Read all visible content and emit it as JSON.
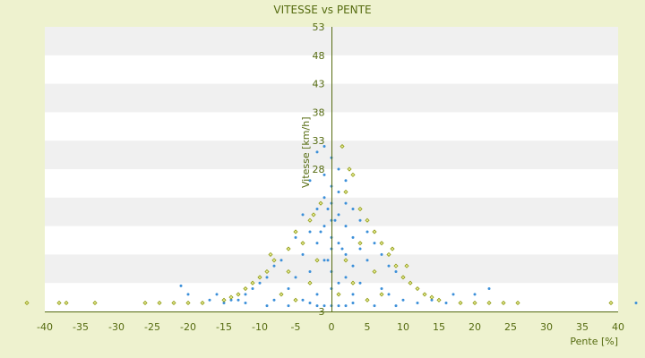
{
  "chart_data": {
    "type": "scatter",
    "title": "VITESSE vs PENTE",
    "xlabel": "Pente [%]",
    "ylabel": "Vitesse [km/h]",
    "xlim": [
      -40,
      40
    ],
    "ylim": [
      3,
      53
    ],
    "x_ticks": [
      -40,
      -35,
      -30,
      -25,
      -20,
      -15,
      -10,
      -5,
      0,
      5,
      10,
      15,
      20,
      25,
      30,
      35,
      40
    ],
    "y_ticks": [
      3,
      8,
      13,
      18,
      23,
      28,
      33,
      38,
      43,
      48,
      53
    ],
    "y_tick_labels_visible": [
      "3",
      "28",
      "33",
      "38",
      "43",
      "48",
      "53"
    ],
    "grid": "horizontal-bands",
    "colors": {
      "series_blue": "#3b8fd9",
      "series_olive": "#8f9a12",
      "band": "#f0f0f0",
      "plot_bg": "#ffffff",
      "axis": "#556b10",
      "page_bg": "#eef2cf"
    },
    "series": [
      {
        "name": "",
        "color": "#3b8fd9",
        "marker": "small-dot",
        "points": [
          [
            -1,
            32
          ],
          [
            0,
            30
          ],
          [
            -2,
            31
          ],
          [
            1,
            28
          ],
          [
            -1,
            27
          ],
          [
            2,
            26
          ],
          [
            0,
            25
          ],
          [
            -3,
            26
          ],
          [
            1,
            24
          ],
          [
            -1,
            23
          ],
          [
            0,
            22
          ],
          [
            2,
            22
          ],
          [
            -2,
            21
          ],
          [
            3,
            21
          ],
          [
            1,
            20
          ],
          [
            -4,
            20
          ],
          [
            0,
            19
          ],
          [
            4,
            19
          ],
          [
            -1,
            18
          ],
          [
            2,
            18
          ],
          [
            -3,
            17
          ],
          [
            5,
            17
          ],
          [
            0,
            16
          ],
          [
            -5,
            16
          ],
          [
            3,
            16
          ],
          [
            1,
            15
          ],
          [
            -2,
            15
          ],
          [
            6,
            15
          ],
          [
            0,
            14
          ],
          [
            -6,
            14
          ],
          [
            4,
            14
          ],
          [
            2,
            13
          ],
          [
            -4,
            13
          ],
          [
            7,
            13
          ],
          [
            -1,
            12
          ],
          [
            5,
            12
          ],
          [
            -7,
            12
          ],
          [
            3,
            11
          ],
          [
            8,
            11
          ],
          [
            -8,
            11
          ],
          [
            0,
            10
          ],
          [
            6,
            10
          ],
          [
            -3,
            10
          ],
          [
            9,
            10
          ],
          [
            -9,
            9
          ],
          [
            2,
            9
          ],
          [
            10,
            9
          ],
          [
            -5,
            9
          ],
          [
            4,
            8
          ],
          [
            11,
            8
          ],
          [
            -10,
            8
          ],
          [
            1,
            8
          ],
          [
            -6,
            7
          ],
          [
            7,
            7
          ],
          [
            12,
            7
          ],
          [
            -11,
            7
          ],
          [
            0,
            7
          ],
          [
            3,
            6
          ],
          [
            13,
            6
          ],
          [
            -12,
            6
          ],
          [
            -2,
            6
          ],
          [
            8,
            6
          ],
          [
            14,
            5
          ],
          [
            -13,
            5
          ],
          [
            5,
            5
          ],
          [
            -4,
            5
          ],
          [
            15,
            5
          ],
          [
            -14,
            5
          ],
          [
            10,
            5
          ],
          [
            -8,
            5
          ],
          [
            16,
            4.5
          ],
          [
            -15,
            4.5
          ],
          [
            18,
            4.5
          ],
          [
            -17,
            5
          ],
          [
            20,
            6
          ],
          [
            -20,
            6
          ],
          [
            22,
            7
          ],
          [
            -21,
            7.5
          ],
          [
            17,
            6
          ],
          [
            -16,
            6
          ],
          [
            0,
            4
          ],
          [
            1,
            4
          ],
          [
            -1,
            4
          ],
          [
            2,
            4
          ],
          [
            -2,
            4
          ],
          [
            3,
            4.5
          ],
          [
            -3,
            4.5
          ],
          [
            6,
            4
          ],
          [
            -6,
            4
          ],
          [
            9,
            4
          ],
          [
            -9,
            4
          ],
          [
            12,
            4.5
          ],
          [
            -12,
            4.5
          ],
          [
            24,
            4.5
          ],
          [
            42.5,
            4.5
          ],
          [
            -0.5,
            21
          ],
          [
            0.5,
            19
          ],
          [
            -1.5,
            17
          ],
          [
            1.5,
            14
          ],
          [
            -0.5,
            12
          ]
        ]
      },
      {
        "name": "",
        "color": "#8f9a12",
        "marker": "small-diamond",
        "points": [
          [
            1.5,
            32
          ],
          [
            3,
            27
          ],
          [
            2,
            24
          ],
          [
            4,
            21
          ],
          [
            5,
            19
          ],
          [
            -1.5,
            22
          ],
          [
            -3,
            19
          ],
          [
            6,
            17
          ],
          [
            -5,
            17
          ],
          [
            7,
            15
          ],
          [
            -6,
            14
          ],
          [
            8,
            13
          ],
          [
            -8,
            12
          ],
          [
            9,
            11
          ],
          [
            -9,
            10
          ],
          [
            10,
            9
          ],
          [
            -10,
            9
          ],
          [
            11,
            8
          ],
          [
            -11,
            8
          ],
          [
            12,
            7
          ],
          [
            -12,
            7
          ],
          [
            13,
            6
          ],
          [
            -13,
            6
          ],
          [
            14,
            5.5
          ],
          [
            -14,
            5.5
          ],
          [
            15,
            5
          ],
          [
            -15,
            5
          ],
          [
            4,
            15
          ],
          [
            -4,
            15
          ],
          [
            2,
            12
          ],
          [
            -2,
            12
          ],
          [
            6,
            10
          ],
          [
            -6,
            10
          ],
          [
            3,
            8
          ],
          [
            -3,
            8
          ],
          [
            7,
            6
          ],
          [
            -7,
            6
          ],
          [
            5,
            5
          ],
          [
            -5,
            5
          ],
          [
            1,
            6
          ],
          [
            18,
            4.5
          ],
          [
            20,
            4.5
          ],
          [
            22,
            4.5
          ],
          [
            24,
            4.5
          ],
          [
            26,
            4.5
          ],
          [
            -18,
            4.5
          ],
          [
            -20,
            4.5
          ],
          [
            -22,
            4.5
          ],
          [
            -24,
            4.5
          ],
          [
            -26,
            4.5
          ],
          [
            -33,
            4.5
          ],
          [
            -37,
            4.5
          ],
          [
            -38,
            4.5
          ],
          [
            -42.5,
            4.5
          ],
          [
            39,
            4.5
          ],
          [
            2.5,
            28
          ],
          [
            -2.5,
            20
          ],
          [
            8.5,
            14
          ],
          [
            -8.5,
            13
          ],
          [
            10.5,
            11
          ]
        ]
      }
    ]
  }
}
